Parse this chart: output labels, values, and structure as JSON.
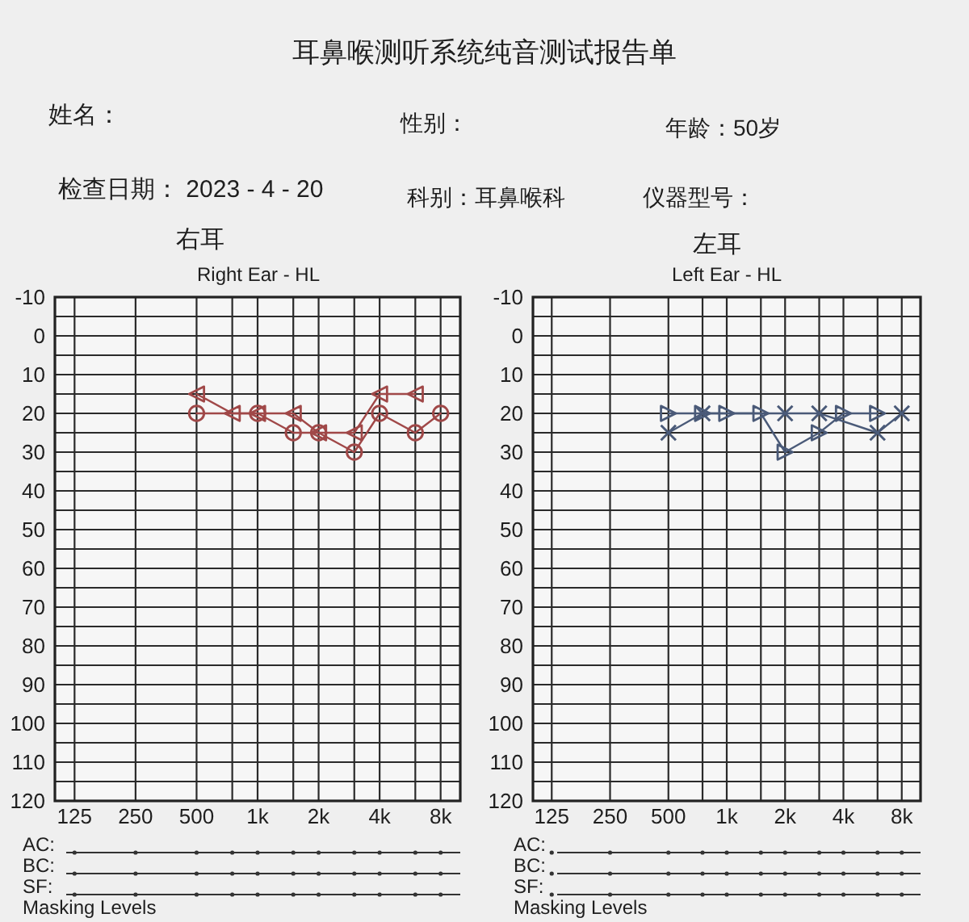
{
  "chart_data": [
    {
      "type": "line",
      "title": "Right Ear - HL",
      "subtitle": "右耳",
      "annotations": [
        "耳鼻喉测听系统纯音测试报告单",
        "姓名：",
        "性别：",
        "年龄：50岁",
        "检查日期： 2023 - 4 - 20",
        "科别：耳鼻喉科",
        "仪器型号：",
        "AC:",
        "BC:",
        "SF:",
        "Masking Levels"
      ],
      "log": "x",
      "xlim": [
        100,
        10000
      ],
      "xticks": [
        125,
        250,
        500,
        {
          "value": 750,
          "label": null
        },
        {
          "value": 1000,
          "label": "1k"
        },
        {
          "value": 1500,
          "label": null
        },
        {
          "value": 2000,
          "label": "2k"
        },
        {
          "value": 3000,
          "label": null
        },
        {
          "value": 4000,
          "label": "4k"
        },
        {
          "value": 6000,
          "label": null
        },
        {
          "value": 8000,
          "label": "8k"
        }
      ],
      "ylim": [
        120,
        -10
      ],
      "yticks": [
        -10,
        {
          "value": -5,
          "label": null
        },
        0,
        {
          "value": 5,
          "label": null
        },
        10,
        {
          "value": 15,
          "label": null
        },
        20,
        {
          "value": 25,
          "label": null
        },
        30,
        {
          "value": 35,
          "label": null
        },
        40,
        {
          "value": 45,
          "label": null
        },
        50,
        {
          "value": 55,
          "label": null
        },
        60,
        {
          "value": 65,
          "label": null
        },
        70,
        {
          "value": 75,
          "label": null
        },
        80,
        {
          "value": 85,
          "label": null
        },
        90,
        {
          "value": 95,
          "label": null
        },
        100,
        {
          "value": 105,
          "label": null
        },
        110,
        {
          "value": 115,
          "label": null
        },
        120
      ],
      "grid": true,
      "series": [
        {
          "color": "#a04848",
          "marker": "circle",
          "x": [
            500,
            1000,
            1500,
            2000,
            3000,
            4000,
            6000,
            8000
          ],
          "values": [
            20,
            20,
            25,
            25,
            30,
            20,
            25,
            20
          ]
        },
        {
          "color": "#a04848",
          "marker": "triangle",
          "x": [
            500,
            750,
            1000,
            1500,
            2000,
            3000,
            4000,
            6000
          ],
          "values": [
            15,
            20,
            20,
            20,
            25,
            25,
            15,
            15
          ]
        }
      ]
    },
    {
      "type": "line",
      "title": "Left Ear - HL",
      "subtitle": "左耳",
      "annotations": [
        "AC:",
        "BC:",
        "SF:",
        "Masking Levels"
      ],
      "log": "x",
      "xlim": [
        100,
        10000
      ],
      "xticks": [
        125,
        250,
        500,
        {
          "value": 750,
          "label": null
        },
        {
          "value": 1000,
          "label": "1k"
        },
        {
          "value": 1500,
          "label": null
        },
        {
          "value": 2000,
          "label": "2k"
        },
        {
          "value": 3000,
          "label": null
        },
        {
          "value": 4000,
          "label": "4k"
        },
        {
          "value": 6000,
          "label": null
        },
        {
          "value": 8000,
          "label": "8k"
        }
      ],
      "ylim": [
        120,
        -10
      ],
      "yticks": [
        -10,
        {
          "value": -5,
          "label": null
        },
        0,
        {
          "value": 5,
          "label": null
        },
        10,
        {
          "value": 15,
          "label": null
        },
        20,
        {
          "value": 25,
          "label": null
        },
        30,
        {
          "value": 35,
          "label": null
        },
        40,
        {
          "value": 45,
          "label": null
        },
        50,
        {
          "value": 55,
          "label": null
        },
        60,
        {
          "value": 65,
          "label": null
        },
        70,
        {
          "value": 75,
          "label": null
        },
        80,
        {
          "value": 85,
          "label": null
        },
        90,
        {
          "value": 95,
          "label": null
        },
        100,
        {
          "value": 105,
          "label": null
        },
        110,
        {
          "value": 115,
          "label": null
        },
        120
      ],
      "grid": true,
      "series": [
        {
          "color": "#4a5a78",
          "marker": "cross",
          "x": [
            500,
            750,
            2000,
            3000,
            6000,
            8000
          ],
          "values": [
            25,
            20,
            20,
            20,
            25,
            20
          ]
        },
        {
          "color": "#4a5a78",
          "marker": "triangle",
          "x": [
            500,
            750,
            1000,
            1500,
            2000,
            3000,
            4000,
            6000
          ],
          "values": [
            20,
            20,
            20,
            20,
            30,
            25,
            20,
            20
          ]
        }
      ]
    }
  ]
}
